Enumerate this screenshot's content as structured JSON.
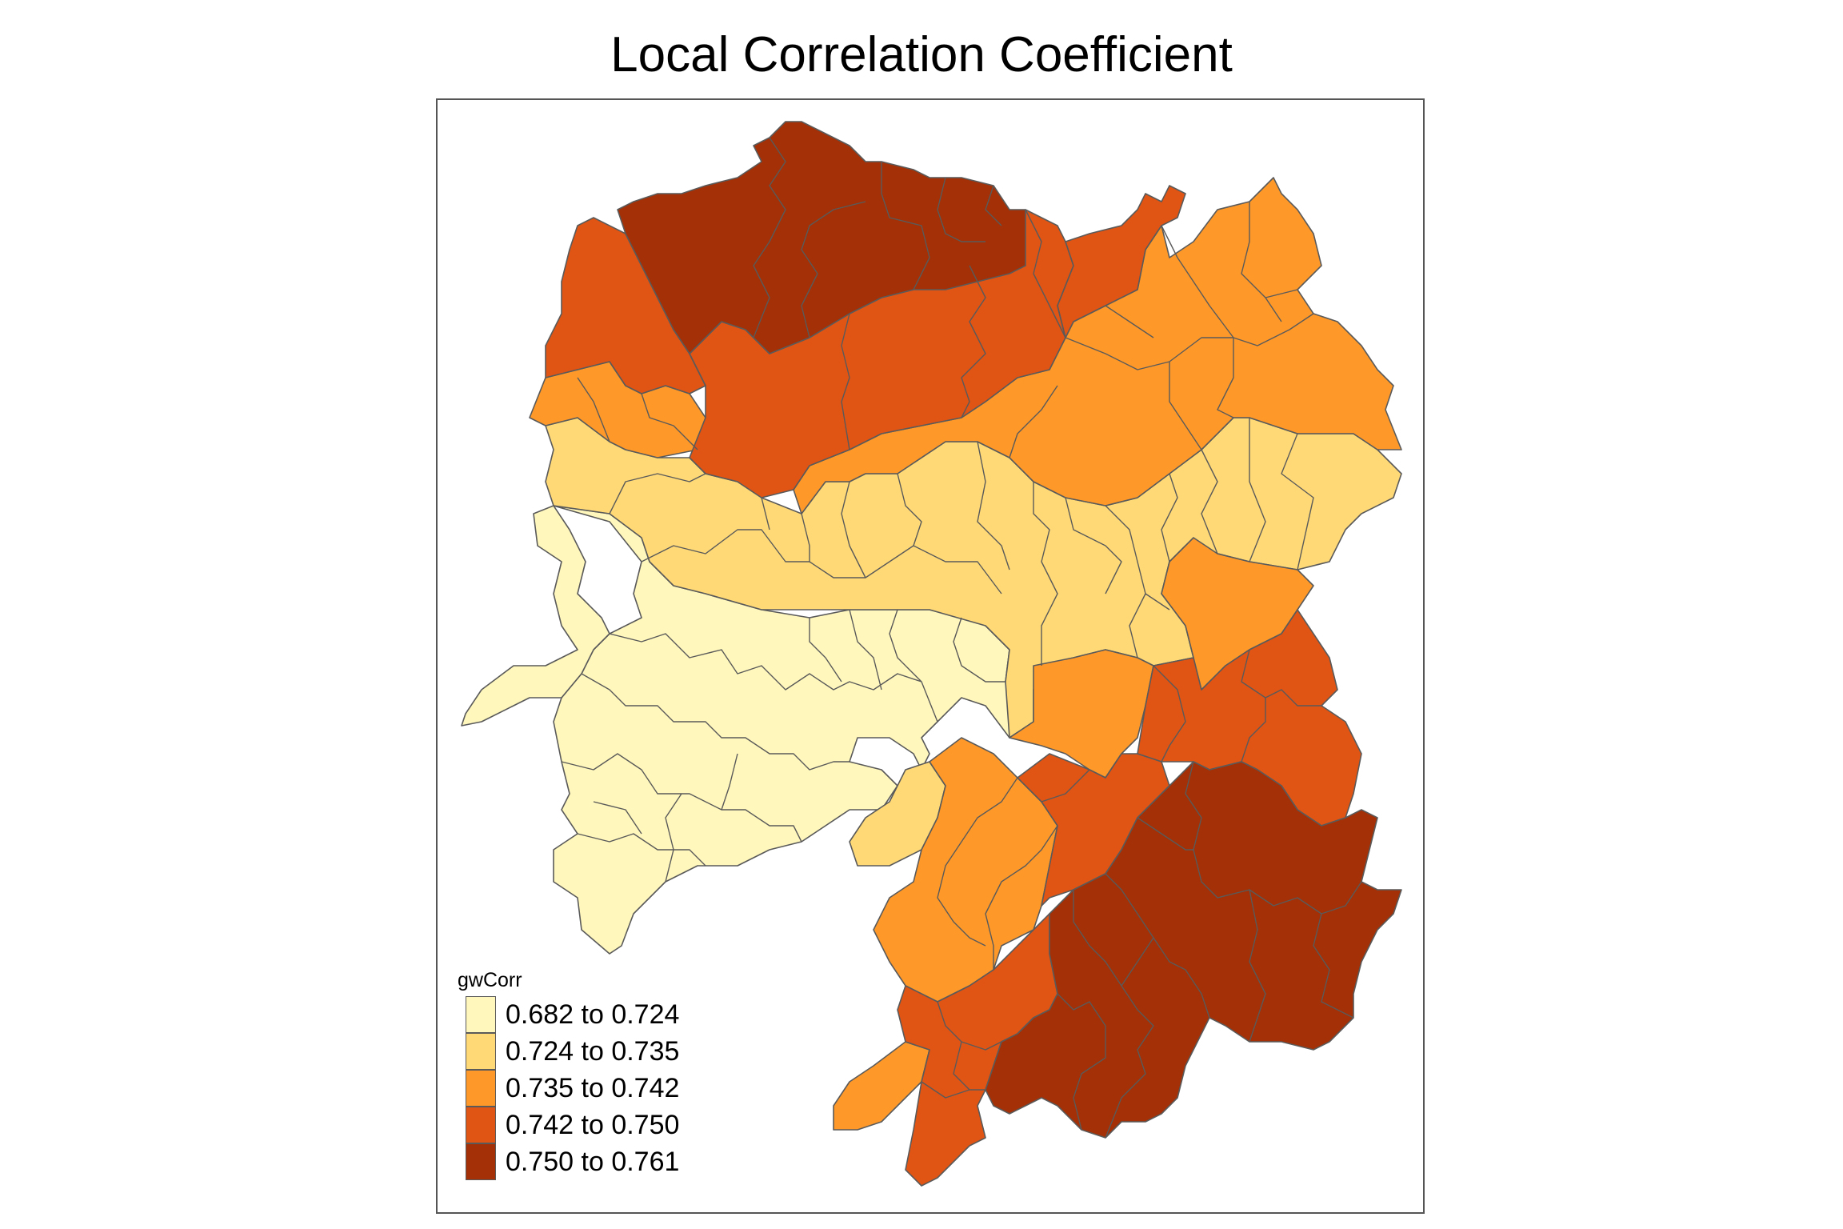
{
  "map": {
    "title": "Local Correlation Coefficient",
    "legend": {
      "title": "gwCorr",
      "classes": [
        {
          "label": "0.682 to 0.724",
          "color": "#fff7bc"
        },
        {
          "label": "0.724 to 0.735",
          "color": "#fed976"
        },
        {
          "label": "0.735 to 0.742",
          "color": "#fe9929"
        },
        {
          "label": "0.742 to 0.750",
          "color": "#e05414"
        },
        {
          "label": "0.750 to 0.761",
          "color": "#a33006"
        }
      ]
    }
  }
}
